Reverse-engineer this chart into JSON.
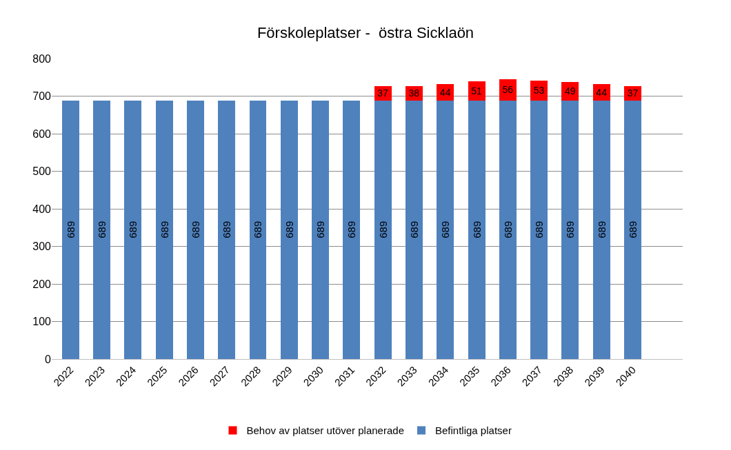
{
  "chart_data": {
    "type": "bar",
    "title": "Förskoleplatser -  östra Sicklaön",
    "categories": [
      "2022",
      "2023",
      "2024",
      "2025",
      "2026",
      "2027",
      "2028",
      "2029",
      "2030",
      "2031",
      "2032",
      "2033",
      "2034",
      "2035",
      "2036",
      "2037",
      "2038",
      "2039",
      "2040"
    ],
    "stacked": true,
    "series": [
      {
        "name": "Befintliga platser",
        "color": "#4f81bd",
        "values": [
          689,
          689,
          689,
          689,
          689,
          689,
          689,
          689,
          689,
          689,
          689,
          689,
          689,
          689,
          689,
          689,
          689,
          689,
          689
        ]
      },
      {
        "name": "Behov av platser utöver planerade",
        "color": "#ff0000",
        "values": [
          null,
          null,
          null,
          null,
          null,
          null,
          null,
          null,
          null,
          null,
          37,
          38,
          44,
          51,
          56,
          53,
          49,
          44,
          37
        ]
      }
    ],
    "ylim": [
      0,
      800
    ],
    "yticks": [
      0,
      100,
      200,
      300,
      400,
      500,
      600,
      700,
      800
    ],
    "grid": "y",
    "legend": "bottom",
    "data_labels": true
  }
}
